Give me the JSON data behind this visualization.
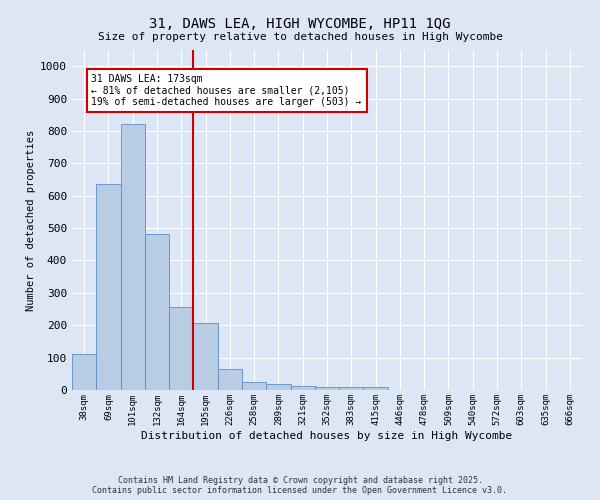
{
  "title1": "31, DAWS LEA, HIGH WYCOMBE, HP11 1QG",
  "title2": "Size of property relative to detached houses in High Wycombe",
  "xlabel": "Distribution of detached houses by size in High Wycombe",
  "ylabel": "Number of detached properties",
  "categories": [
    "38sqm",
    "69sqm",
    "101sqm",
    "132sqm",
    "164sqm",
    "195sqm",
    "226sqm",
    "258sqm",
    "289sqm",
    "321sqm",
    "352sqm",
    "383sqm",
    "415sqm",
    "446sqm",
    "478sqm",
    "509sqm",
    "540sqm",
    "572sqm",
    "603sqm",
    "635sqm",
    "666sqm"
  ],
  "values": [
    110,
    635,
    820,
    483,
    255,
    207,
    65,
    25,
    20,
    13,
    10,
    9,
    8,
    0,
    0,
    0,
    0,
    0,
    0,
    0,
    0
  ],
  "bar_color": "#b8cce4",
  "bar_edge_color": "#5b8fc9",
  "vline_x": 4.5,
  "annotation_text": "31 DAWS LEA: 173sqm\n← 81% of detached houses are smaller (2,105)\n19% of semi-detached houses are larger (503) →",
  "annotation_box_color": "#ffffff",
  "annotation_box_edge_color": "#cc0000",
  "ylim": [
    0,
    1050
  ],
  "yticks": [
    0,
    100,
    200,
    300,
    400,
    500,
    600,
    700,
    800,
    900,
    1000
  ],
  "background_color": "#dce6f5",
  "plot_bg_color": "#dce6f5",
  "grid_color": "#ffffff",
  "footer": "Contains HM Land Registry data © Crown copyright and database right 2025.\nContains public sector information licensed under the Open Government Licence v3.0."
}
